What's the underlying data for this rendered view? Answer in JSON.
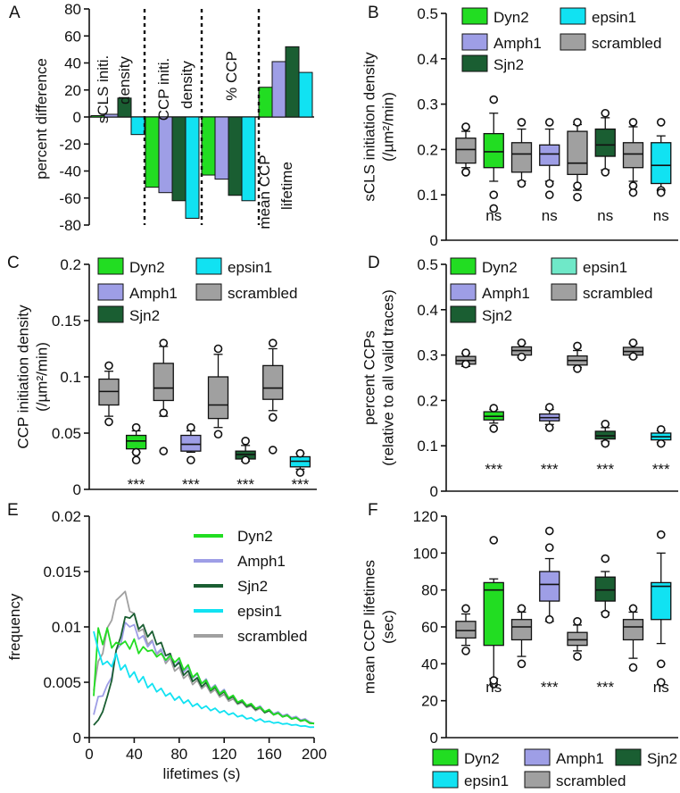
{
  "colors": {
    "dyn2": "#22dd22",
    "amph1": "#9e9ee6",
    "sjn2": "#1a5e32",
    "epsin1": "#11e2f2",
    "scrambled": "#a0a0a0",
    "axis": "#111111"
  },
  "chart_data": [
    {
      "panel": "A",
      "type": "bar",
      "ylabel": "percent difference",
      "ylim": [
        -80,
        80
      ],
      "yticks": [
        -80,
        -60,
        -40,
        -20,
        0,
        20,
        40,
        60,
        80
      ],
      "group_labels": [
        [
          "sCLS initi.",
          "density"
        ],
        [
          "CCP initi.",
          "density"
        ],
        [
          "% CCP"
        ],
        [
          "mean CCP",
          "lifetime"
        ]
      ],
      "series_order": [
        "dyn2",
        "amph1",
        "sjn2",
        "epsin1"
      ],
      "groups": [
        {
          "values": [
            1,
            2,
            14,
            -13
          ]
        },
        {
          "values": [
            -52,
            -56,
            -62,
            -75
          ]
        },
        {
          "values": [
            -43,
            -46,
            -58,
            -62
          ]
        },
        {
          "values": [
            22,
            41,
            52,
            33
          ]
        }
      ]
    },
    {
      "panel": "B",
      "type": "box",
      "ylabel": [
        "sCLS initiation density",
        "(/µm²/min)"
      ],
      "ylim": [
        0,
        0.5
      ],
      "yticks": [
        "0",
        "0.1",
        "0.2",
        "0.3",
        "0.4",
        "0.5"
      ],
      "ytick_values": [
        0,
        0.1,
        0.2,
        0.3,
        0.4,
        0.5
      ],
      "legend": [
        "Dyn2",
        "Amph1",
        "Sjn2",
        "epsin1",
        "scrambled"
      ],
      "significance": [
        "ns",
        "ns",
        "ns",
        "ns"
      ],
      "boxes": [
        {
          "series": "scrambled",
          "whisker_low": 0.16,
          "q1": 0.17,
          "median": 0.2,
          "q3": 0.225,
          "whisker_high": 0.24,
          "outliers": [
            0.15,
            0.15,
            0.25,
            0.25
          ]
        },
        {
          "series": "dyn2",
          "whisker_low": 0.13,
          "q1": 0.16,
          "median": 0.195,
          "q3": 0.235,
          "whisker_high": 0.28,
          "outliers": [
            0.1,
            0.07,
            0.31
          ]
        },
        {
          "series": "scrambled",
          "whisker_low": 0.13,
          "q1": 0.15,
          "median": 0.19,
          "q3": 0.215,
          "whisker_high": 0.245,
          "outliers": [
            0.125,
            0.26
          ]
        },
        {
          "series": "amph1",
          "whisker_low": 0.13,
          "q1": 0.165,
          "median": 0.19,
          "q3": 0.21,
          "whisker_high": 0.245,
          "outliers": [
            0.125,
            0.1,
            0.26
          ]
        },
        {
          "series": "scrambled",
          "whisker_low": 0.11,
          "q1": 0.145,
          "median": 0.17,
          "q3": 0.24,
          "whisker_high": 0.255,
          "outliers": [
            0.12,
            0.095,
            0.26
          ]
        },
        {
          "series": "sjn2",
          "whisker_low": 0.155,
          "q1": 0.185,
          "median": 0.21,
          "q3": 0.245,
          "whisker_high": 0.27,
          "outliers": [
            0.15,
            0.28
          ]
        },
        {
          "series": "scrambled",
          "whisker_low": 0.13,
          "q1": 0.16,
          "median": 0.19,
          "q3": 0.215,
          "whisker_high": 0.25,
          "outliers": [
            0.12,
            0.105,
            0.26
          ]
        },
        {
          "series": "epsin1",
          "whisker_low": 0.11,
          "q1": 0.125,
          "median": 0.165,
          "q3": 0.215,
          "whisker_high": 0.23,
          "outliers": [
            0.11,
            0.105,
            0.26
          ]
        }
      ]
    },
    {
      "panel": "C",
      "type": "box",
      "ylabel": [
        "CCP initiation density",
        "(/µm²/min)"
      ],
      "ylim": [
        0,
        0.2
      ],
      "yticks": [
        "0",
        "0.05",
        "0.1",
        "0.15",
        "0.2"
      ],
      "ytick_values": [
        0,
        0.05,
        0.1,
        0.15,
        0.2
      ],
      "legend": [
        "Dyn2",
        "Amph1",
        "Sjn2",
        "epsin1",
        "scrambled"
      ],
      "significance": [
        "***",
        "***",
        "***",
        "***"
      ],
      "boxes": [
        {
          "series": "scrambled",
          "whisker_low": 0.065,
          "q1": 0.075,
          "median": 0.087,
          "q3": 0.098,
          "whisker_high": 0.105,
          "outliers": [
            0.06,
            0.11
          ]
        },
        {
          "series": "dyn2",
          "whisker_low": 0.033,
          "q1": 0.036,
          "median": 0.043,
          "q3": 0.048,
          "whisker_high": 0.052,
          "outliers": [
            0.026,
            0.033,
            0.055
          ]
        },
        {
          "series": "scrambled",
          "whisker_low": 0.065,
          "q1": 0.079,
          "median": 0.09,
          "q3": 0.112,
          "whisker_high": 0.127,
          "outliers": [
            0.068,
            0.034,
            0.13
          ]
        },
        {
          "series": "amph1",
          "whisker_low": 0.033,
          "q1": 0.034,
          "median": 0.04,
          "q3": 0.048,
          "whisker_high": 0.052,
          "outliers": [
            0.026,
            0.055
          ]
        },
        {
          "series": "scrambled",
          "whisker_low": 0.055,
          "q1": 0.063,
          "median": 0.075,
          "q3": 0.1,
          "whisker_high": 0.12,
          "outliers": [
            0.049,
            0.125
          ]
        },
        {
          "series": "sjn2",
          "whisker_low": 0.025,
          "q1": 0.027,
          "median": 0.031,
          "q3": 0.034,
          "whisker_high": 0.039,
          "outliers": [
            0.026,
            0.043
          ]
        },
        {
          "series": "scrambled",
          "whisker_low": 0.07,
          "q1": 0.08,
          "median": 0.09,
          "q3": 0.11,
          "whisker_high": 0.125,
          "outliers": [
            0.064,
            0.035,
            0.13
          ]
        },
        {
          "series": "epsin1",
          "whisker_low": 0.018,
          "q1": 0.02,
          "median": 0.025,
          "q3": 0.029,
          "whisker_high": 0.032,
          "outliers": [
            0.015,
            0.032
          ]
        }
      ]
    },
    {
      "panel": "D",
      "type": "box",
      "ylabel": [
        "percent CCPs",
        "(relative to all valid traces)"
      ],
      "ylim": [
        0,
        0.5
      ],
      "yticks": [
        "0",
        "0.1",
        "0.2",
        "0.3",
        "0.4",
        "0.5"
      ],
      "ytick_values": [
        0,
        0.1,
        0.2,
        0.3,
        0.4,
        0.5
      ],
      "legend": [
        "Dyn2",
        "Amph1",
        "Sjn2",
        "epsin1",
        "scrambled"
      ],
      "legend_epsin1_color": "#6fe8c8",
      "significance": [
        "***",
        "***",
        "***",
        "***"
      ],
      "boxes": [
        {
          "series": "scrambled",
          "whisker_low": 0.275,
          "q1": 0.28,
          "median": 0.288,
          "q3": 0.297,
          "whisker_high": 0.303,
          "outliers": [
            0.28,
            0.305
          ]
        },
        {
          "series": "dyn2",
          "whisker_low": 0.15,
          "q1": 0.157,
          "median": 0.165,
          "q3": 0.175,
          "whisker_high": 0.18,
          "outliers": [
            0.138,
            0.183
          ]
        },
        {
          "series": "scrambled",
          "whisker_low": 0.295,
          "q1": 0.3,
          "median": 0.31,
          "q3": 0.318,
          "whisker_high": 0.325,
          "outliers": [
            0.296,
            0.327
          ]
        },
        {
          "series": "amph1",
          "whisker_low": 0.147,
          "q1": 0.155,
          "median": 0.162,
          "q3": 0.17,
          "whisker_high": 0.18,
          "outliers": [
            0.14,
            0.185
          ]
        },
        {
          "series": "scrambled",
          "whisker_low": 0.273,
          "q1": 0.278,
          "median": 0.288,
          "q3": 0.298,
          "whisker_high": 0.31,
          "outliers": [
            0.27,
            0.32
          ]
        },
        {
          "series": "sjn2",
          "whisker_low": 0.11,
          "q1": 0.115,
          "median": 0.122,
          "q3": 0.132,
          "whisker_high": 0.14,
          "outliers": [
            0.105,
            0.148
          ]
        },
        {
          "series": "scrambled",
          "whisker_low": 0.295,
          "q1": 0.3,
          "median": 0.308,
          "q3": 0.317,
          "whisker_high": 0.325,
          "outliers": [
            0.297,
            0.327
          ]
        },
        {
          "series": "epsin1",
          "whisker_low": 0.108,
          "q1": 0.113,
          "median": 0.12,
          "q3": 0.128,
          "whisker_high": 0.133,
          "outliers": [
            0.105,
            0.136
          ]
        }
      ]
    },
    {
      "panel": "E",
      "type": "line",
      "xlabel": "lifetimes (s)",
      "ylabel": "frequency",
      "xlim": [
        0,
        200
      ],
      "ylim": [
        0,
        0.02
      ],
      "xticks": [
        "0",
        "40",
        "80",
        "120",
        "160",
        "200"
      ],
      "xtick_values": [
        0,
        40,
        80,
        120,
        160,
        200
      ],
      "yticks": [
        "0",
        "0.005",
        "0.01",
        "0.015",
        "0.02"
      ],
      "ytick_values": [
        0,
        0.005,
        0.01,
        0.015,
        0.02
      ],
      "x": [
        4,
        8,
        12,
        16,
        20,
        24,
        28,
        32,
        36,
        40,
        44,
        48,
        52,
        56,
        60,
        64,
        68,
        72,
        76,
        80,
        84,
        88,
        92,
        96,
        100,
        104,
        108,
        112,
        116,
        120,
        124,
        128,
        132,
        136,
        140,
        144,
        148,
        152,
        156,
        160,
        164,
        168,
        172,
        176,
        180,
        184,
        188,
        192,
        196,
        200
      ],
      "series": [
        {
          "name": "Dyn2",
          "key": "dyn2",
          "values": [
            0.004,
            0.0095,
            0.0088,
            0.0095,
            0.0085,
            0.0082,
            0.0088,
            0.0083,
            0.0084,
            0.0085,
            0.008,
            0.0078,
            0.0082,
            0.0075,
            0.0077,
            0.0072,
            0.0074,
            0.007,
            0.0072,
            0.0068,
            0.0065,
            0.0062,
            0.0058,
            0.0055,
            0.0052,
            0.0049,
            0.0046,
            0.0044,
            0.0042,
            0.004,
            0.0038,
            0.0036,
            0.0034,
            0.0032,
            0.0031,
            0.0029,
            0.0028,
            0.0026,
            0.0025,
            0.0024,
            0.0022,
            0.0021,
            0.002,
            0.0019,
            0.0018,
            0.0017,
            0.0016,
            0.0015,
            0.0014,
            0.0012
          ]
        },
        {
          "name": "Amph1",
          "key": "amph1",
          "values": [
            0.0022,
            0.0035,
            0.004,
            0.0045,
            0.0058,
            0.0075,
            0.0088,
            0.01,
            0.0104,
            0.0098,
            0.0093,
            0.0088,
            0.0086,
            0.0083,
            0.008,
            0.0076,
            0.0073,
            0.0072,
            0.0068,
            0.0066,
            0.0063,
            0.006,
            0.0057,
            0.0054,
            0.0052,
            0.005,
            0.0047,
            0.0045,
            0.0043,
            0.0041,
            0.0038,
            0.0036,
            0.0034,
            0.0032,
            0.0031,
            0.0029,
            0.0028,
            0.0027,
            0.0025,
            0.0024,
            0.0023,
            0.0022,
            0.0021,
            0.002,
            0.0019,
            0.0018,
            0.0017,
            0.0016,
            0.0015,
            0.0012
          ]
        },
        {
          "name": "Sjn2",
          "key": "sjn2",
          "values": [
            0.0012,
            0.0015,
            0.0025,
            0.0035,
            0.0055,
            0.0075,
            0.0095,
            0.0105,
            0.0112,
            0.0108,
            0.0102,
            0.0098,
            0.0095,
            0.0092,
            0.0088,
            0.0082,
            0.0078,
            0.0072,
            0.0068,
            0.0064,
            0.006,
            0.0057,
            0.0054,
            0.0051,
            0.0049,
            0.0047,
            0.0045,
            0.0043,
            0.0041,
            0.0039,
            0.0037,
            0.0035,
            0.0033,
            0.0031,
            0.003,
            0.0028,
            0.0027,
            0.0026,
            0.0024,
            0.0023,
            0.0022,
            0.0021,
            0.002,
            0.0019,
            0.0018,
            0.0017,
            0.0016,
            0.0015,
            0.0014,
            0.0012
          ]
        },
        {
          "name": "epsin1",
          "key": "epsin1",
          "values": [
            0.01,
            0.0075,
            0.007,
            0.0065,
            0.0068,
            0.0072,
            0.0065,
            0.0062,
            0.0058,
            0.0056,
            0.0053,
            0.0052,
            0.0048,
            0.0046,
            0.0044,
            0.0042,
            0.004,
            0.0038,
            0.0036,
            0.0035,
            0.0033,
            0.0032,
            0.003,
            0.0029,
            0.0028,
            0.0027,
            0.0026,
            0.0025,
            0.0024,
            0.0023,
            0.0022,
            0.0021,
            0.002,
            0.0019,
            0.0018,
            0.0017,
            0.0016,
            0.0016,
            0.0015,
            0.0014,
            0.0014,
            0.0013,
            0.0013,
            0.0012,
            0.0012,
            0.0011,
            0.0011,
            0.001,
            0.001,
            0.0009
          ]
        },
        {
          "name": "scrambled",
          "key": "scrambled",
          "values": [
            0.0045,
            0.0065,
            0.008,
            0.0095,
            0.011,
            0.012,
            0.0132,
            0.0128,
            0.0118,
            0.0108,
            0.01,
            0.0094,
            0.0088,
            0.0084,
            0.0079,
            0.0075,
            0.0071,
            0.0068,
            0.0064,
            0.006,
            0.0057,
            0.0054,
            0.0051,
            0.0049,
            0.0047,
            0.0045,
            0.0043,
            0.0041,
            0.0039,
            0.0037,
            0.0035,
            0.0033,
            0.0032,
            0.003,
            0.0029,
            0.0027,
            0.0026,
            0.0025,
            0.0024,
            0.0023,
            0.0022,
            0.0021,
            0.002,
            0.0019,
            0.0018,
            0.0017,
            0.0016,
            0.0015,
            0.0014,
            0.0012
          ]
        }
      ]
    },
    {
      "panel": "F",
      "type": "box",
      "ylabel": [
        "mean CCP lifetimes",
        "(sec)"
      ],
      "ylim": [
        0,
        120
      ],
      "yticks": [
        "0",
        "20",
        "40",
        "60",
        "80",
        "100",
        "120"
      ],
      "ytick_values": [
        0,
        20,
        40,
        60,
        80,
        100,
        120
      ],
      "legend": [
        "Dyn2",
        "Amph1",
        "Sjn2",
        "epsin1",
        "scrambled"
      ],
      "significance": [
        "ns",
        "***",
        "***",
        "ns"
      ],
      "boxes": [
        {
          "series": "scrambled",
          "whisker_low": 50,
          "q1": 54,
          "median": 58,
          "q3": 63,
          "whisker_high": 67,
          "outliers": [
            47,
            70
          ]
        },
        {
          "series": "dyn2",
          "whisker_low": 32,
          "q1": 50,
          "median": 80,
          "q3": 84,
          "whisker_high": 86,
          "outliers": [
            29,
            31,
            107
          ]
        },
        {
          "series": "scrambled",
          "whisker_low": 44,
          "q1": 53,
          "median": 60,
          "q3": 64,
          "whisker_high": 68,
          "outliers": [
            40,
            70
          ]
        },
        {
          "series": "amph1",
          "whisker_low": 63,
          "q1": 74,
          "median": 83,
          "q3": 90,
          "whisker_high": 97,
          "outliers": [
            64,
            103,
            112
          ]
        },
        {
          "series": "scrambled",
          "whisker_low": 47,
          "q1": 50,
          "median": 53,
          "q3": 57,
          "whisker_high": 61,
          "outliers": [
            44,
            63
          ]
        },
        {
          "series": "sjn2",
          "whisker_low": 68,
          "q1": 74,
          "median": 80,
          "q3": 87,
          "whisker_high": 90,
          "outliers": [
            67,
            97
          ]
        },
        {
          "series": "scrambled",
          "whisker_low": 43,
          "q1": 53,
          "median": 60,
          "q3": 64,
          "whisker_high": 68,
          "outliers": [
            38,
            70
          ]
        },
        {
          "series": "epsin1",
          "whisker_low": 51,
          "q1": 64,
          "median": 82,
          "q3": 84,
          "whisker_high": 100,
          "outliers": [
            40,
            30,
            110
          ]
        }
      ]
    }
  ],
  "panel_letters": [
    "A",
    "B",
    "C",
    "D",
    "E",
    "F"
  ],
  "legend_e": [
    "Dyn2",
    "Amph1",
    "Sjn2",
    "epsin1",
    "scrambled"
  ],
  "legend_f": [
    "Dyn2",
    "Amph1",
    "Sjn2",
    "epsin1",
    "scrambled"
  ]
}
